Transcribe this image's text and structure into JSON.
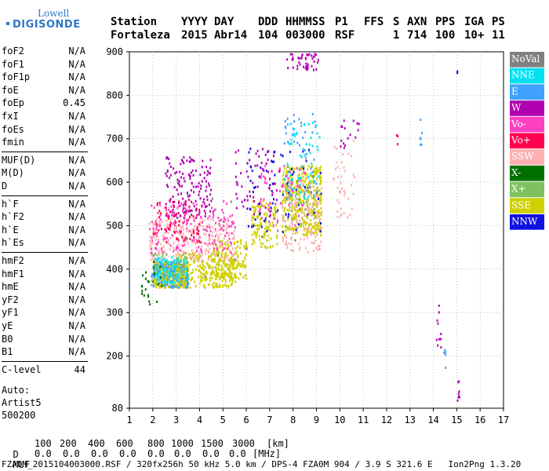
{
  "logo": {
    "line1": "Lowell",
    "line2": "DIGISONDE"
  },
  "header": {
    "labels": [
      "Station",
      "YYYY",
      "DAY",
      "DDD",
      "HHMMSS",
      "P1",
      "FFS",
      "S",
      "AXN",
      "PPS",
      "IGA",
      "PS"
    ],
    "values": [
      "Fortaleza",
      "2015",
      "Abr14",
      "104",
      "003000",
      "RSF",
      "1",
      "714",
      "100",
      "10+",
      "11"
    ]
  },
  "params": [
    {
      "k": "foF2",
      "v": "N/A"
    },
    {
      "k": "foF1",
      "v": "N/A"
    },
    {
      "k": "foF1p",
      "v": "N/A"
    },
    {
      "k": "foE",
      "v": "N/A"
    },
    {
      "k": "foEp",
      "v": "0.45"
    },
    {
      "k": "fxI",
      "v": "N/A"
    },
    {
      "k": "foEs",
      "v": "N/A"
    },
    {
      "k": "fmin",
      "v": "N/A"
    },
    {
      "k": "MUF(D)",
      "v": "N/A"
    },
    {
      "k": "M(D)",
      "v": "N/A"
    },
    {
      "k": "D",
      "v": "N/A"
    },
    {
      "k": "h`F",
      "v": "N/A"
    },
    {
      "k": "h`F2",
      "v": "N/A"
    },
    {
      "k": "h`E",
      "v": "N/A"
    },
    {
      "k": "h`Es",
      "v": "N/A"
    },
    {
      "k": "hmF2",
      "v": "N/A"
    },
    {
      "k": "hmF1",
      "v": "N/A"
    },
    {
      "k": "hmE",
      "v": "N/A"
    },
    {
      "k": "yF2",
      "v": "N/A"
    },
    {
      "k": "yF1",
      "v": "N/A"
    },
    {
      "k": "yE",
      "v": "N/A"
    },
    {
      "k": "B0",
      "v": "N/A"
    },
    {
      "k": "B1",
      "v": "N/A"
    },
    {
      "k": "C-level",
      "v": "44"
    }
  ],
  "extra": [
    "Auto:",
    "Artist5",
    "500200"
  ],
  "legend": [
    {
      "label": "NoVal",
      "color": "#808080"
    },
    {
      "label": "NNE",
      "color": "#00e0f0"
    },
    {
      "label": "E",
      "color": "#40a0ff"
    },
    {
      "label": "W",
      "color": "#b000b0"
    },
    {
      "label": "Vo-",
      "color": "#ff40c0"
    },
    {
      "label": "Vo+",
      "color": "#ff0050"
    },
    {
      "label": "SSW",
      "color": "#ffb0b0"
    },
    {
      "label": "X-",
      "color": "#007000"
    },
    {
      "label": "X+",
      "color": "#80c060"
    },
    {
      "label": "SSE",
      "color": "#d0d000"
    },
    {
      "label": "NNW",
      "color": "#1010e0"
    }
  ],
  "footer": {
    "d_label": "D",
    "d_values": [
      "100",
      "200",
      "400",
      "600",
      "800",
      "1000",
      "1500",
      "3000"
    ],
    "d_unit": "[km]",
    "muf_label": "MUF",
    "muf_values": [
      "0.0",
      "0.0",
      "0.0",
      "0.0",
      "0.0",
      "0.0",
      "0.0",
      "0.0"
    ],
    "muf_unit": "[MHz]",
    "info": "FZA0M_2015104003000.RSF / 320fx256h 50 kHz 5.0 km / DPS-4 FZA0M 904 / 3.9 S 321.6 E   Ion2Png 1.3.20"
  },
  "chart_data": {
    "type": "scatter",
    "title": "",
    "xlabel": "",
    "ylabel": "",
    "xlim": [
      1,
      17
    ],
    "ylim": [
      80,
      900
    ],
    "x_ticks": [
      1,
      2,
      3,
      4,
      5,
      6,
      7,
      8,
      9,
      10,
      11,
      12,
      13,
      14,
      15,
      16,
      17
    ],
    "y_ticks": [
      80,
      200,
      300,
      400,
      500,
      600,
      700,
      800,
      900
    ],
    "grid": "dotted",
    "legend_position": "right",
    "series": [
      {
        "name": "SSE",
        "clusters": [
          {
            "x": [
              2.0,
              3.5
            ],
            "y": [
              360,
              420
            ],
            "n": 420
          },
          {
            "x": [
              3.0,
              5.5
            ],
            "y": [
              360,
              440
            ],
            "n": 300
          },
          {
            "x": [
              4.5,
              6.0
            ],
            "y": [
              380,
              470
            ],
            "n": 140
          },
          {
            "x": [
              6.2,
              7.3
            ],
            "y": [
              450,
              560
            ],
            "n": 120
          },
          {
            "x": [
              7.5,
              9.2
            ],
            "y": [
              480,
              640
            ],
            "n": 380
          }
        ]
      },
      {
        "name": "E",
        "clusters": [
          {
            "x": [
              1.9,
              3.5
            ],
            "y": [
              360,
              420
            ],
            "n": 140
          },
          {
            "x": [
              7.6,
              9.0
            ],
            "y": [
              560,
              760
            ],
            "n": 50
          },
          {
            "x": [
              13.4,
              13.5
            ],
            "y": [
              680,
              750
            ],
            "n": 6
          },
          {
            "x": [
              14.4,
              14.5
            ],
            "y": [
              160,
              230
            ],
            "n": 5
          }
        ]
      },
      {
        "name": "NNE",
        "clusters": [
          {
            "x": [
              2.0,
              3.5
            ],
            "y": [
              370,
              430
            ],
            "n": 100
          },
          {
            "x": [
              7.6,
              9.1
            ],
            "y": [
              560,
              740
            ],
            "n": 60
          }
        ]
      },
      {
        "name": "SSW",
        "clusters": [
          {
            "x": [
              1.8,
              5.5
            ],
            "y": [
              420,
              520
            ],
            "n": 260
          },
          {
            "x": [
              7.5,
              9.2
            ],
            "y": [
              440,
              600
            ],
            "n": 140
          },
          {
            "x": [
              9.7,
              10.6
            ],
            "y": [
              520,
              700
            ],
            "n": 40
          }
        ]
      },
      {
        "name": "Vo-",
        "clusters": [
          {
            "x": [
              1.8,
              5.5
            ],
            "y": [
              440,
              560
            ],
            "n": 170
          },
          {
            "x": [
              6.5,
              8.5
            ],
            "y": [
              500,
              640
            ],
            "n": 60
          }
        ]
      },
      {
        "name": "W",
        "clusters": [
          {
            "x": [
              2.5,
              4.5
            ],
            "y": [
              520,
              660
            ],
            "n": 140
          },
          {
            "x": [
              5.5,
              7.4
            ],
            "y": [
              520,
              680
            ],
            "n": 60
          },
          {
            "x": [
              7.7,
              9.1
            ],
            "y": [
              860,
              900
            ],
            "n": 45
          },
          {
            "x": [
              10.0,
              10.8
            ],
            "y": [
              680,
              750
            ],
            "n": 16
          },
          {
            "x": [
              14.1,
              14.3
            ],
            "y": [
              210,
              320
            ],
            "n": 10
          },
          {
            "x": [
              15.0,
              15.1
            ],
            "y": [
              100,
              150
            ],
            "n": 8
          }
        ]
      },
      {
        "name": "Vo+",
        "clusters": [
          {
            "x": [
              2.0,
              4.0
            ],
            "y": [
              460,
              560
            ],
            "n": 70
          },
          {
            "x": [
              12.4,
              12.5
            ],
            "y": [
              690,
              730
            ],
            "n": 3
          }
        ]
      },
      {
        "name": "NNW",
        "clusters": [
          {
            "x": [
              6.0,
              9.2
            ],
            "y": [
              480,
              680
            ],
            "n": 70
          },
          {
            "x": [
              14.9,
              15.0
            ],
            "y": [
              850,
              870
            ],
            "n": 2
          }
        ]
      },
      {
        "name": "X-",
        "clusters": [
          {
            "x": [
              1.5,
              2.4
            ],
            "y": [
              320,
              420
            ],
            "n": 26
          }
        ]
      },
      {
        "name": "X+",
        "clusters": [
          {
            "x": [
              1.8,
              3.5
            ],
            "y": [
              370,
              440
            ],
            "n": 40
          },
          {
            "x": [
              7.5,
              9.0
            ],
            "y": [
              500,
              600
            ],
            "n": 30
          }
        ]
      },
      {
        "name": "NoVal",
        "clusters": [
          {
            "x": [
              2.0,
              9.0
            ],
            "y": [
              380,
              620
            ],
            "n": 20
          }
        ]
      }
    ]
  }
}
